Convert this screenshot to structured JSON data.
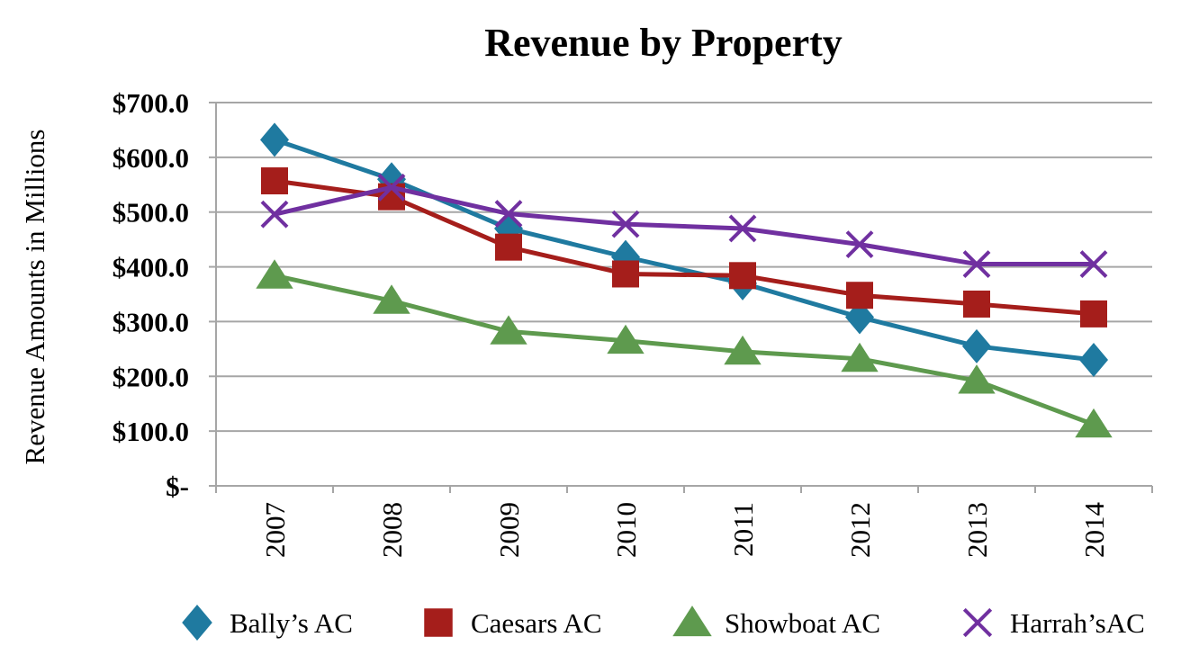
{
  "chart_data": {
    "type": "line",
    "title": "Revenue by Property",
    "xlabel": "",
    "ylabel": "Revenue Amounts in Millions",
    "categories": [
      "2007",
      "2008",
      "2009",
      "2010",
      "2011",
      "2012",
      "2013",
      "2014"
    ],
    "ylim": [
      0,
      700
    ],
    "yticks": [
      0,
      100,
      200,
      300,
      400,
      500,
      600,
      700
    ],
    "ytick_labels": [
      "$-",
      "$100.0",
      "$200.0",
      "$300.0",
      "$400.0",
      "$500.0",
      "$600.0",
      "$700.0"
    ],
    "grid": "horizontal",
    "legend_position": "bottom",
    "series": [
      {
        "name": "Bally’s AC",
        "marker": "diamond",
        "color": "#1f7aa0",
        "values": [
          632,
          560,
          470,
          418,
          370,
          308,
          255,
          230
        ]
      },
      {
        "name": "Caesars AC",
        "marker": "square",
        "color": "#a51e1b",
        "values": [
          557,
          528,
          436,
          387,
          384,
          348,
          332,
          314
        ]
      },
      {
        "name": "Showboat AC",
        "marker": "triangle",
        "color": "#5e9a4e",
        "values": [
          384,
          338,
          282,
          265,
          245,
          232,
          192,
          112
        ]
      },
      {
        "name": "Harrah’sAC",
        "marker": "x",
        "color": "#7030a0",
        "values": [
          496,
          545,
          497,
          478,
          470,
          441,
          405,
          405
        ]
      }
    ]
  }
}
